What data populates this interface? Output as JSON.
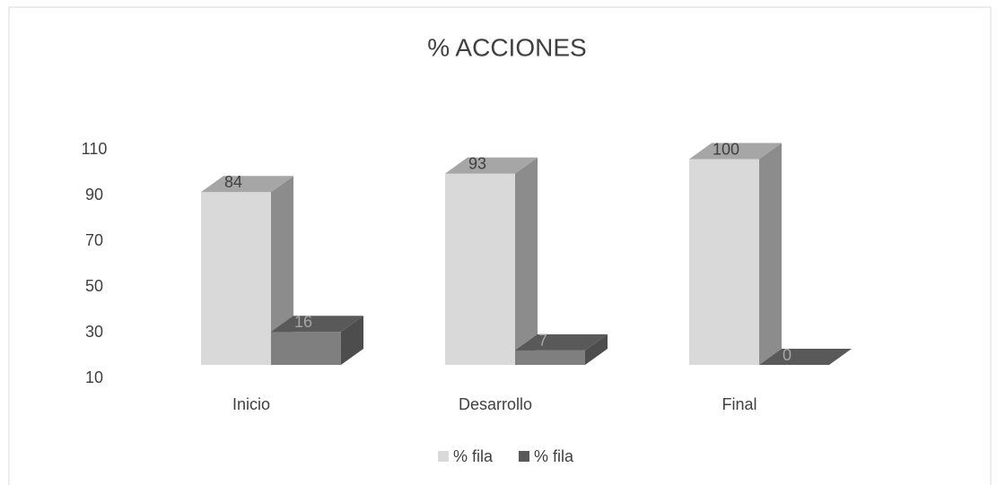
{
  "chart_data": {
    "type": "bar3d",
    "title": "% ACCIONES",
    "categories": [
      "Inicio",
      "Desarrollo",
      "Final"
    ],
    "series": [
      {
        "name": "% fila",
        "color": "#d9d9d9",
        "values": [
          84,
          93,
          100
        ]
      },
      {
        "name": "% fila",
        "color": "#7f7f7f",
        "values": [
          16,
          7,
          0
        ]
      }
    ],
    "ylim": [
      10,
      110
    ],
    "yticks": [
      10,
      30,
      50,
      70,
      90,
      110
    ],
    "legend": "bottom"
  }
}
